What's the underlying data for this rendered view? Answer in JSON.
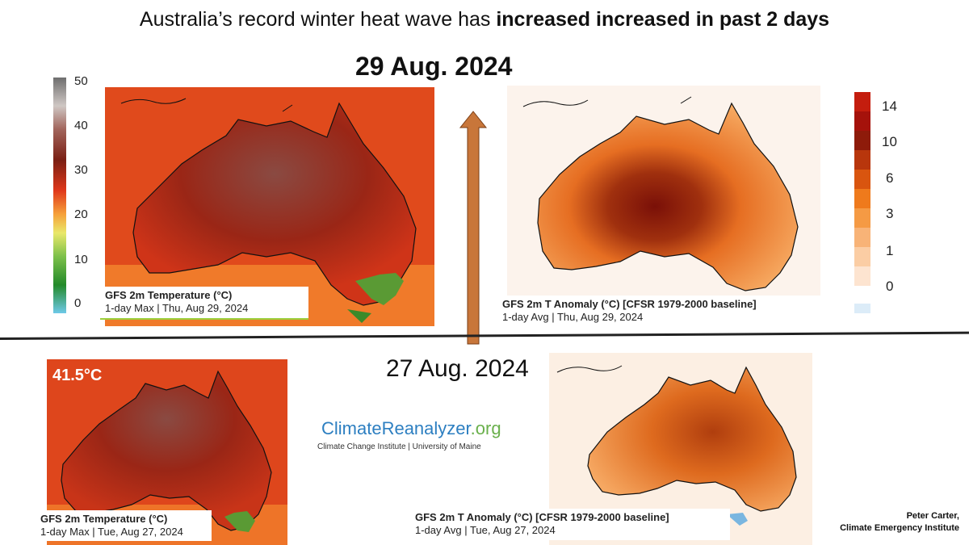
{
  "title": {
    "prefix": "Australia’s record winter heat wave  has ",
    "bold": "increased increased in past 2 days"
  },
  "dates": {
    "top": "29 Aug. 2024",
    "bottom": "27 Aug. 2024"
  },
  "maps": {
    "temp_top": {
      "caption_line1": "GFS 2m Temperature (°C)",
      "caption_line2": "1-day Max | Thu, Aug 29, 2024"
    },
    "anom_top": {
      "caption_line1": "GFS 2m T Anomaly (°C) [CFSR 1979-2000 baseline]",
      "caption_line2": "1-day Avg | Thu, Aug 29, 2024"
    },
    "temp_bottom": {
      "caption_line1": "GFS 2m Temperature (°C)",
      "caption_line2": "1-day Max | Tue, Aug 27, 2024",
      "max_label": "41.5°C"
    },
    "anom_bottom": {
      "caption_line1": "GFS 2m T Anomaly (°C) [CFSR 1979-2000 baseline]",
      "caption_line2": "1-day Avg | Tue, Aug 27, 2024"
    }
  },
  "colorbars": {
    "temperature": {
      "ticks": [
        "50",
        "40",
        "30",
        "20",
        "10",
        "0"
      ]
    },
    "anomaly": {
      "ticks": [
        "14",
        "10",
        "6",
        "3",
        "1",
        "0"
      ]
    }
  },
  "logo": {
    "part1": "Climate",
    "part2": "Reanalyzer",
    "part3": ".org",
    "subtitle": "Climate Change Institute | University of Maine"
  },
  "credit": {
    "name": "Peter Carter,",
    "org": "Climate Emergency Institute"
  },
  "colors": {
    "arrow": "#c8763a",
    "temp_hot": "#7a2e22",
    "temp_mid": "#d33a1a",
    "anom_high": "#8b1a0a",
    "anom_mid": "#f08a2e"
  }
}
